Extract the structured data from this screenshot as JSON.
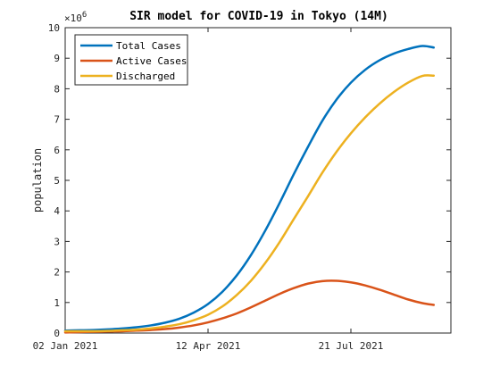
{
  "chart_data": {
    "type": "line",
    "title": "SIR model for COVID-19 in Tokyo (14M)",
    "ylabel": "population",
    "xlabel": "",
    "y_exponent": "6",
    "y_exponent_prefix": "×10",
    "ylim": [
      0,
      10
    ],
    "yticks": [
      0,
      1,
      2,
      3,
      4,
      5,
      6,
      7,
      8,
      9,
      10
    ],
    "xlim": [
      0,
      270
    ],
    "xticks": [
      {
        "value": 0,
        "label": "02 Jan 2021"
      },
      {
        "value": 100,
        "label": "12 Apr 2021"
      },
      {
        "value": 200,
        "label": "21 Jul 2021"
      }
    ],
    "x": [
      0,
      10,
      20,
      30,
      40,
      50,
      60,
      70,
      80,
      90,
      100,
      110,
      120,
      130,
      140,
      150,
      160,
      170,
      180,
      190,
      200,
      210,
      220,
      230,
      240,
      250,
      258
    ],
    "series": [
      {
        "name": "Total Cases",
        "color": "#0072BD",
        "values": [
          0.08,
          0.09,
          0.1,
          0.12,
          0.15,
          0.19,
          0.25,
          0.34,
          0.47,
          0.67,
          0.95,
          1.35,
          1.88,
          2.55,
          3.35,
          4.25,
          5.2,
          6.1,
          6.95,
          7.65,
          8.2,
          8.62,
          8.93,
          9.15,
          9.3,
          9.4,
          9.35
        ]
      },
      {
        "name": "Active Cases",
        "color": "#D95319",
        "values": [
          0.02,
          0.03,
          0.04,
          0.05,
          0.06,
          0.08,
          0.1,
          0.13,
          0.18,
          0.25,
          0.35,
          0.48,
          0.64,
          0.84,
          1.06,
          1.28,
          1.47,
          1.62,
          1.7,
          1.71,
          1.66,
          1.56,
          1.42,
          1.26,
          1.1,
          0.98,
          0.92
        ]
      },
      {
        "name": "Discharged",
        "color": "#EDB120",
        "values": [
          0.06,
          0.06,
          0.06,
          0.07,
          0.09,
          0.11,
          0.15,
          0.21,
          0.29,
          0.42,
          0.6,
          0.87,
          1.24,
          1.71,
          2.29,
          2.97,
          3.73,
          4.48,
          5.25,
          5.94,
          6.54,
          7.06,
          7.51,
          7.89,
          8.2,
          8.42,
          8.43
        ]
      }
    ],
    "legend": "top-left",
    "grid": false
  }
}
